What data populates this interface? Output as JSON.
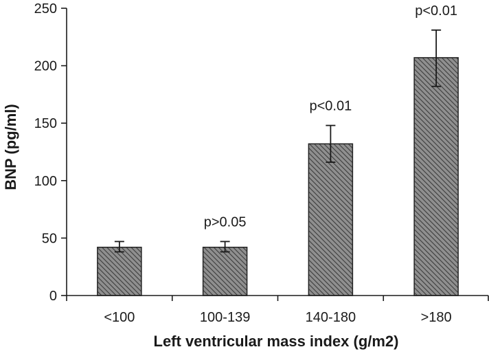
{
  "chart_data": {
    "type": "bar",
    "title": "",
    "xlabel": "Left ventricular mass index (g/m2)",
    "ylabel": "BNP (pg/ml)",
    "ylim": [
      0,
      250
    ],
    "yticks": [
      0,
      50,
      100,
      150,
      200,
      250
    ],
    "categories": [
      "<100",
      "100-139",
      "140-180",
      ">180"
    ],
    "values": [
      42,
      42,
      132,
      207
    ],
    "error_low": [
      38,
      38,
      116,
      182
    ],
    "error_high": [
      47,
      47,
      148,
      231
    ],
    "annotations": [
      "",
      "p>0.05",
      "p<0.01",
      "p<0.01"
    ],
    "bar_fill": "hatched",
    "colors": {
      "bar": "#8c8c8c",
      "hatch": "#3a3a3a",
      "axis": "#1a1a1a"
    },
    "grid": false,
    "legend": "none"
  }
}
